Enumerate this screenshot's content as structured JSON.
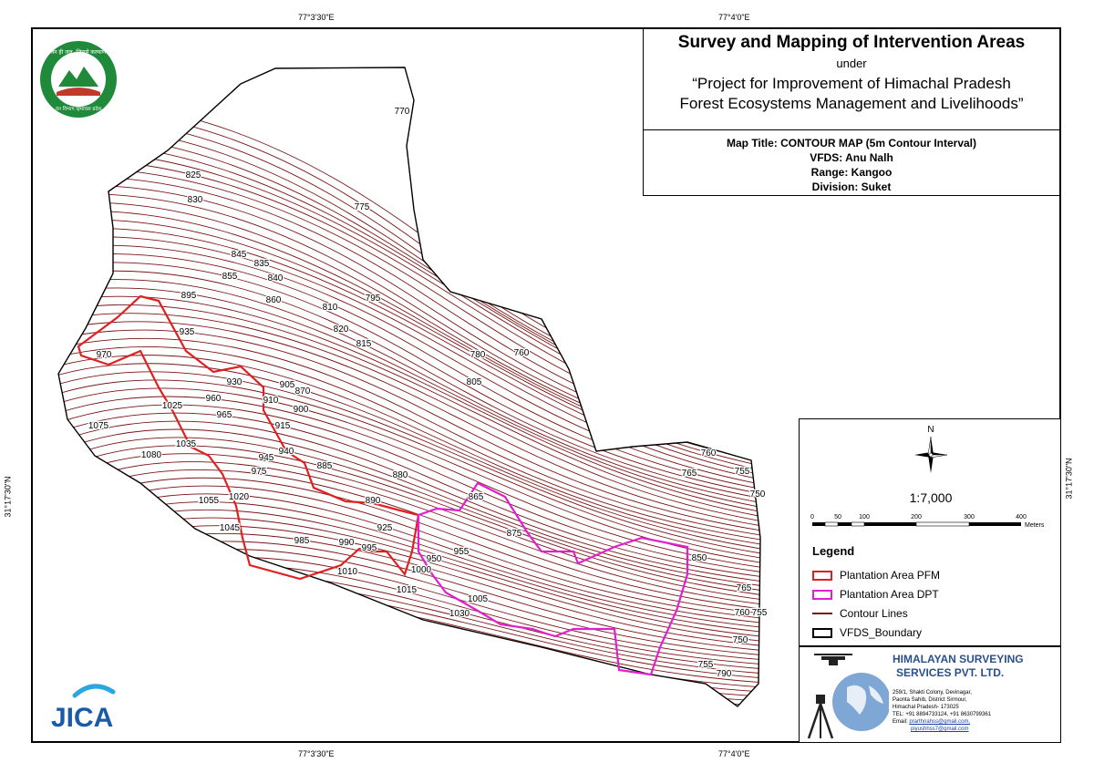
{
  "title": {
    "main": "Survey and Mapping of Intervention Areas",
    "under": "under",
    "project_line1": "“Project for Improvement of Himachal Pradesh",
    "project_line2": "Forest Ecosystems Management and Livelihoods”"
  },
  "map_info": {
    "map_title": "Map Title: CONTOUR MAP (5m Contour Interval)",
    "vfds": "VFDS: Anu Nalh",
    "range": "Range: Kangoo",
    "division": "Division: Suket"
  },
  "coordinates": {
    "top_left": "77°3'30\"E",
    "top_right": "77°4'0\"E",
    "bottom_left": "77°3'30\"E",
    "bottom_right": "77°4'0\"E",
    "left_lat": "31°17'30\"N",
    "right_lat": "31°17'30\"N"
  },
  "north_label": "N",
  "scale": {
    "ratio": "1:7,000",
    "ticks": [
      "0",
      "50",
      "100",
      "200",
      "300",
      "400"
    ],
    "unit": "Meters"
  },
  "legend": {
    "title": "Legend",
    "items": [
      {
        "label": "Plantation Area PFM",
        "color": "#e02020"
      },
      {
        "label": "Plantation Area DPT",
        "color": "#e020d0"
      },
      {
        "label": "Contour Lines",
        "color": "#7a1414"
      },
      {
        "label": "VFDS_Boundary",
        "color": "#000000"
      }
    ]
  },
  "company": {
    "name_line1": "HIMALAYAN SURVEYING",
    "name_line2": "SERVICES PVT. LTD.",
    "addr1": "259/1, Shakti Colony, Devinagar,",
    "addr2": "Paonta Sahib, District Sirmour,",
    "addr3": "Himachal Pradesh- 173025",
    "tel": "TEL: +91 8894733124, +91 8630799361",
    "email_label": "Email:",
    "email1": "prarthnahss@gmail.com,",
    "email2": "piyushhss7@gmail.com"
  },
  "logos": {
    "jica": "JICA",
    "seal_top": "वन ही जल, जिससे कल्याण",
    "seal_bottom": "वन विभाग हिमाचल प्रदेश"
  },
  "contour_labels": [
    "770",
    "775",
    "825",
    "830",
    "835",
    "845",
    "855",
    "840",
    "860",
    "810",
    "820",
    "815",
    "795",
    "780",
    "805",
    "760",
    "895",
    "935",
    "970",
    "930",
    "905",
    "870",
    "910",
    "900",
    "915",
    "940",
    "885",
    "960",
    "965",
    "1025",
    "1075",
    "1035",
    "1080",
    "945",
    "975",
    "1020",
    "1055",
    "1045",
    "880",
    "890",
    "865",
    "875",
    "925",
    "985",
    "990",
    "995",
    "950",
    "955",
    "1000",
    "1010",
    "1015",
    "1005",
    "1030",
    "760",
    "765",
    "755",
    "750",
    "850",
    "765",
    "760",
    "755",
    "750",
    "755",
    "790"
  ],
  "colors": {
    "contour": "#7a1414",
    "pfm": "#e02020",
    "dpt": "#e020d0",
    "boundary": "#000000",
    "company_blue": "#2b4f8c"
  }
}
